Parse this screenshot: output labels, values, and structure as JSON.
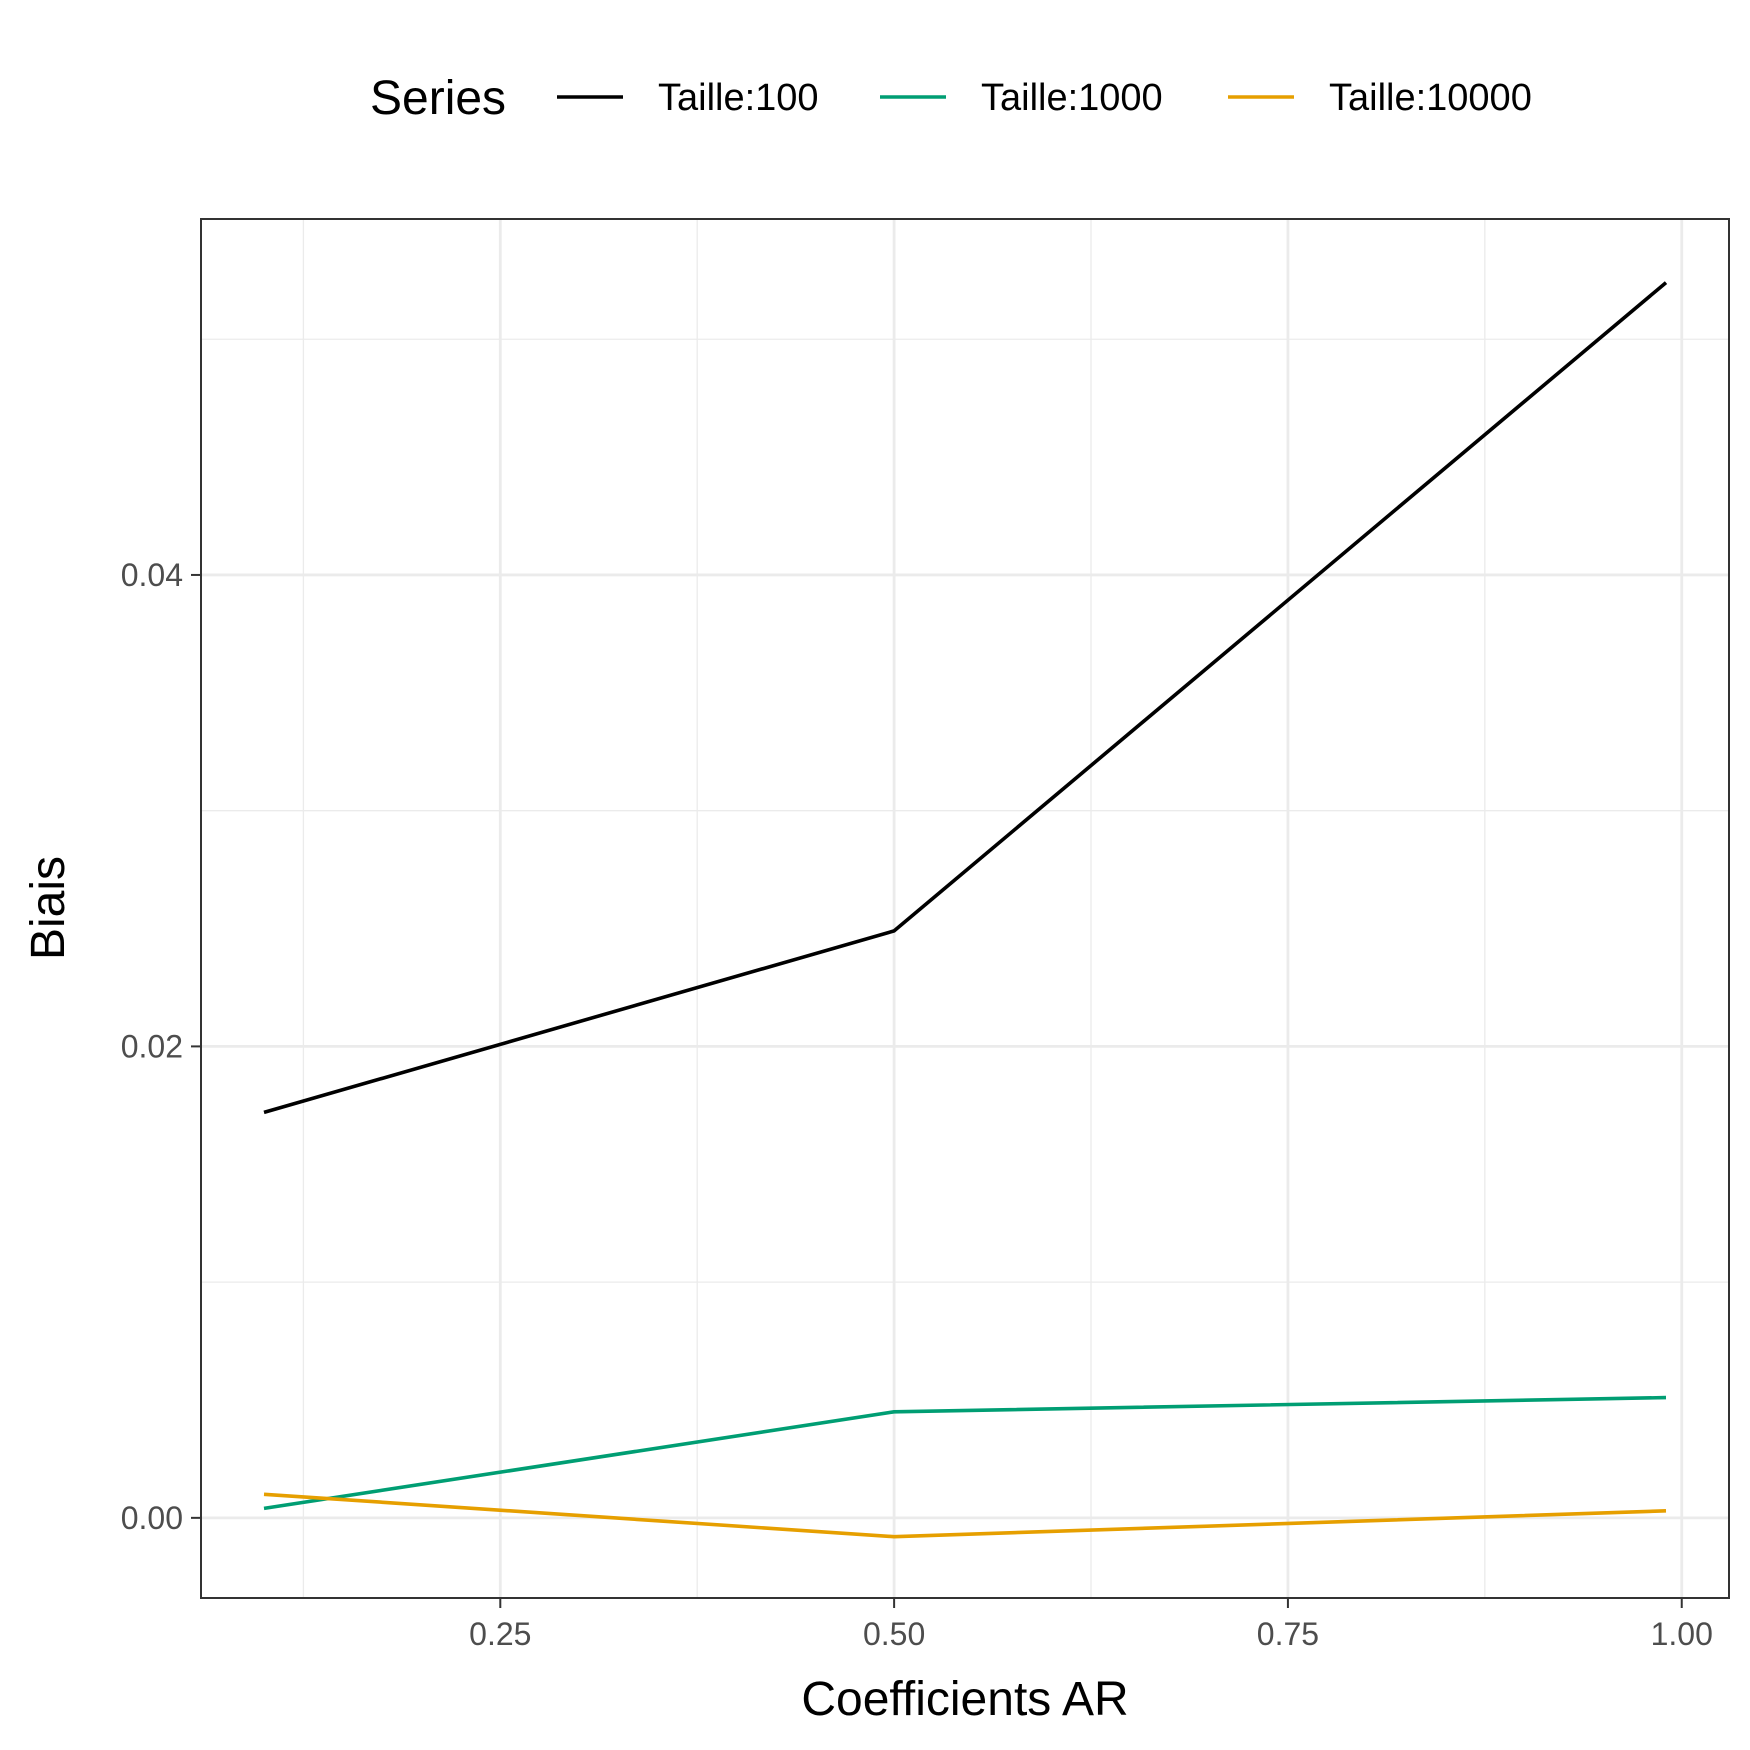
{
  "chart_data": {
    "type": "line",
    "xlabel": "Coefficients AR",
    "ylabel": "Biais",
    "xlim": [
      0.06,
      1.03
    ],
    "ylim": [
      -0.0034,
      0.0551
    ],
    "x_ticks": [
      0.25,
      0.5,
      0.75,
      1.0
    ],
    "x_tick_labels": [
      "0.25",
      "0.50",
      "0.75",
      "1.00"
    ],
    "y_ticks": [
      0.0,
      0.02,
      0.04
    ],
    "y_tick_labels": [
      "0.00",
      "0.02",
      "0.04"
    ],
    "grid": true,
    "legend": {
      "title": "Series",
      "position": "top"
    },
    "series": [
      {
        "name": "Taille:100",
        "color": "#000000",
        "x": [
          0.1,
          0.5,
          0.99
        ],
        "y": [
          0.0172,
          0.0249,
          0.0524
        ]
      },
      {
        "name": "Taille:1000",
        "color": "#009E73",
        "x": [
          0.1,
          0.5,
          0.99
        ],
        "y": [
          0.0004,
          0.0045,
          0.0051
        ]
      },
      {
        "name": "Taille:10000",
        "color": "#E69F00",
        "x": [
          0.1,
          0.5,
          0.99
        ],
        "y": [
          0.001,
          -0.0008,
          0.0003
        ]
      }
    ]
  }
}
